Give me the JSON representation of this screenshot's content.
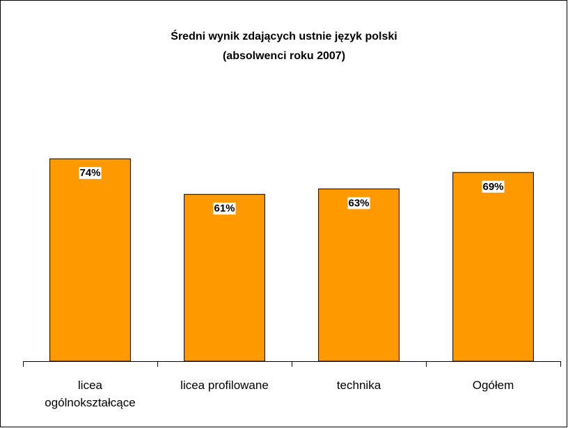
{
  "chart_data": {
    "type": "bar",
    "title": "Średni wynik zdających ustnie język polski",
    "subtitle": "(absolwenci roku 2007)",
    "categories": [
      "licea ogólnokształcące",
      "licea profilowane",
      "technika",
      "Ogółem"
    ],
    "values": [
      74,
      61,
      63,
      69
    ],
    "value_labels": [
      "74%",
      "61%",
      "63%",
      "69%"
    ],
    "color": "#ff9900",
    "ylim": [
      0,
      100
    ]
  }
}
